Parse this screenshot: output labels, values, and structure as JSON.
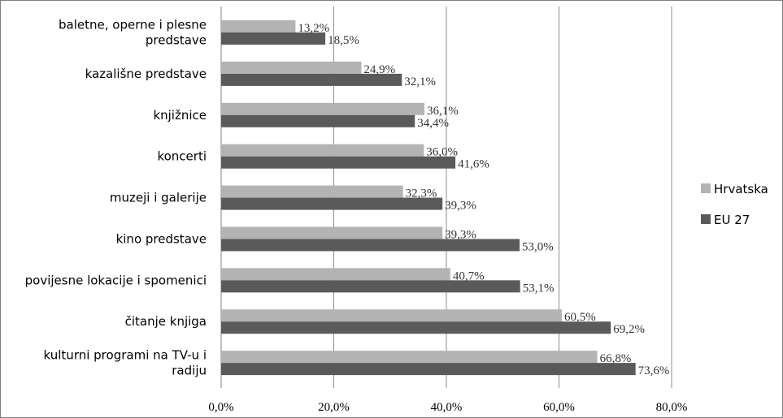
{
  "chart_data": {
    "type": "bar",
    "orientation": "horizontal",
    "categories": [
      [
        "baletne, operne i plesne",
        "predstave"
      ],
      [
        "kazališne predstave"
      ],
      [
        "knjižnice"
      ],
      [
        "koncerti"
      ],
      [
        "muzeji i galerije"
      ],
      [
        "kino predstave"
      ],
      [
        "povijesne lokacije i spomenici"
      ],
      [
        "čitanje knjiga"
      ],
      [
        "kulturni programi na TV-u i",
        "radiju"
      ]
    ],
    "series": [
      {
        "name": "Hrvatska",
        "color": "#b3b3b3",
        "values": [
          13.2,
          24.9,
          36.1,
          36.0,
          32.3,
          39.3,
          40.7,
          60.5,
          66.8
        ],
        "labels": [
          "13,2%",
          "24,9%",
          "36,1%",
          "36,0%",
          "32,3%",
          "39,3%",
          "40,7%",
          "60,5%",
          "66,8%"
        ]
      },
      {
        "name": "EU 27",
        "color": "#5a5a5a",
        "values": [
          18.5,
          32.1,
          34.4,
          41.6,
          39.3,
          53.0,
          53.1,
          69.2,
          73.6
        ],
        "labels": [
          "18,5%",
          "32,1%",
          "34,4%",
          "41,6%",
          "39,3%",
          "53,0%",
          "53,1%",
          "69,2%",
          "73,6%"
        ]
      }
    ],
    "xlim": [
      0,
      80
    ],
    "xticks": [
      0,
      20,
      40,
      60,
      80
    ],
    "xtick_labels": [
      "0,0%",
      "20,0%",
      "40,0%",
      "60,0%",
      "80,0%"
    ],
    "grid": "vertical",
    "legend": "right"
  }
}
